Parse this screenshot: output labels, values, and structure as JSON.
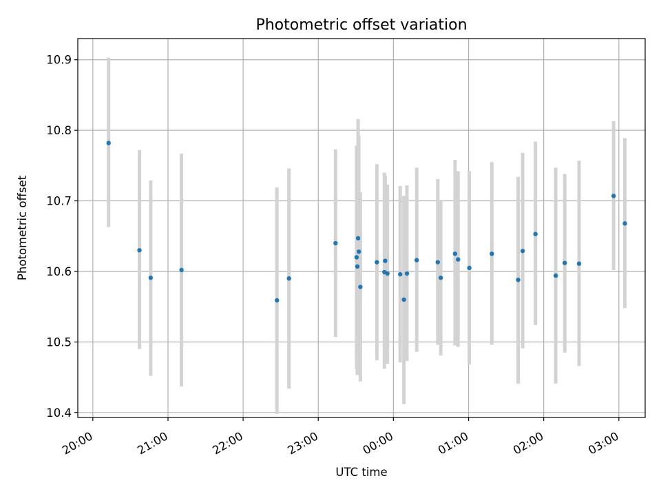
{
  "chart_data": {
    "type": "scatter",
    "title": "Photometric offset variation",
    "xlabel": "UTC time",
    "ylabel": "Photometric offset",
    "x_unit": "hours since 20:00 UTC",
    "xlim": [
      -0.2,
      7.35
    ],
    "ylim": [
      10.393,
      10.93
    ],
    "x_ticks": [
      {
        "value": 0,
        "label": "20:00"
      },
      {
        "value": 1,
        "label": "21:00"
      },
      {
        "value": 2,
        "label": "22:00"
      },
      {
        "value": 3,
        "label": "23:00"
      },
      {
        "value": 4,
        "label": "00:00"
      },
      {
        "value": 5,
        "label": "01:00"
      },
      {
        "value": 6,
        "label": "02:00"
      },
      {
        "value": 7,
        "label": "03:00"
      }
    ],
    "y_ticks": [
      {
        "value": 10.4,
        "label": "10.4"
      },
      {
        "value": 10.5,
        "label": "10.5"
      },
      {
        "value": 10.6,
        "label": "10.6"
      },
      {
        "value": 10.7,
        "label": "10.7"
      },
      {
        "value": 10.8,
        "label": "10.8"
      },
      {
        "value": 10.9,
        "label": "10.9"
      }
    ],
    "grid": true,
    "colors": {
      "point": "#1f77b4",
      "errorbar": "#d3d3d3",
      "grid": "#b0b0b0"
    },
    "points": [
      {
        "x": 0.21,
        "y": 10.782,
        "lo": 10.663,
        "hi": 10.903
      },
      {
        "x": 0.62,
        "y": 10.63,
        "lo": 10.49,
        "hi": 10.772
      },
      {
        "x": 0.77,
        "y": 10.591,
        "lo": 10.452,
        "hi": 10.729
      },
      {
        "x": 1.18,
        "y": 10.602,
        "lo": 10.437,
        "hi": 10.767
      },
      {
        "x": 2.45,
        "y": 10.559,
        "lo": 10.398,
        "hi": 10.719
      },
      {
        "x": 2.61,
        "y": 10.59,
        "lo": 10.434,
        "hi": 10.746
      },
      {
        "x": 3.23,
        "y": 10.64,
        "lo": 10.507,
        "hi": 10.773
      },
      {
        "x": 3.51,
        "y": 10.62,
        "lo": 10.461,
        "hi": 10.778
      },
      {
        "x": 3.52,
        "y": 10.607,
        "lo": 10.453,
        "hi": 10.762
      },
      {
        "x": 3.53,
        "y": 10.647,
        "lo": 10.479,
        "hi": 10.816
      },
      {
        "x": 3.54,
        "y": 10.628,
        "lo": 10.468,
        "hi": 10.792
      },
      {
        "x": 3.56,
        "y": 10.578,
        "lo": 10.444,
        "hi": 10.712
      },
      {
        "x": 3.78,
        "y": 10.613,
        "lo": 10.474,
        "hi": 10.752
      },
      {
        "x": 3.88,
        "y": 10.599,
        "lo": 10.462,
        "hi": 10.74
      },
      {
        "x": 3.89,
        "y": 10.615,
        "lo": 10.476,
        "hi": 10.736
      },
      {
        "x": 3.92,
        "y": 10.597,
        "lo": 10.469,
        "hi": 10.723
      },
      {
        "x": 4.09,
        "y": 10.596,
        "lo": 10.471,
        "hi": 10.721
      },
      {
        "x": 4.14,
        "y": 10.56,
        "lo": 10.412,
        "hi": 10.707
      },
      {
        "x": 4.18,
        "y": 10.597,
        "lo": 10.473,
        "hi": 10.722
      },
      {
        "x": 4.31,
        "y": 10.616,
        "lo": 10.486,
        "hi": 10.747
      },
      {
        "x": 4.59,
        "y": 10.613,
        "lo": 10.496,
        "hi": 10.731
      },
      {
        "x": 4.63,
        "y": 10.591,
        "lo": 10.481,
        "hi": 10.7
      },
      {
        "x": 4.82,
        "y": 10.625,
        "lo": 10.495,
        "hi": 10.758
      },
      {
        "x": 4.86,
        "y": 10.617,
        "lo": 10.493,
        "hi": 10.742
      },
      {
        "x": 5.01,
        "y": 10.605,
        "lo": 10.468,
        "hi": 10.742
      },
      {
        "x": 5.31,
        "y": 10.625,
        "lo": 10.496,
        "hi": 10.755
      },
      {
        "x": 5.66,
        "y": 10.588,
        "lo": 10.441,
        "hi": 10.734
      },
      {
        "x": 5.72,
        "y": 10.629,
        "lo": 10.491,
        "hi": 10.768
      },
      {
        "x": 5.89,
        "y": 10.653,
        "lo": 10.524,
        "hi": 10.784
      },
      {
        "x": 6.16,
        "y": 10.594,
        "lo": 10.441,
        "hi": 10.747
      },
      {
        "x": 6.28,
        "y": 10.612,
        "lo": 10.485,
        "hi": 10.738
      },
      {
        "x": 6.47,
        "y": 10.611,
        "lo": 10.466,
        "hi": 10.757
      },
      {
        "x": 6.93,
        "y": 10.707,
        "lo": 10.602,
        "hi": 10.813
      },
      {
        "x": 7.08,
        "y": 10.668,
        "lo": 10.548,
        "hi": 10.789
      }
    ]
  }
}
